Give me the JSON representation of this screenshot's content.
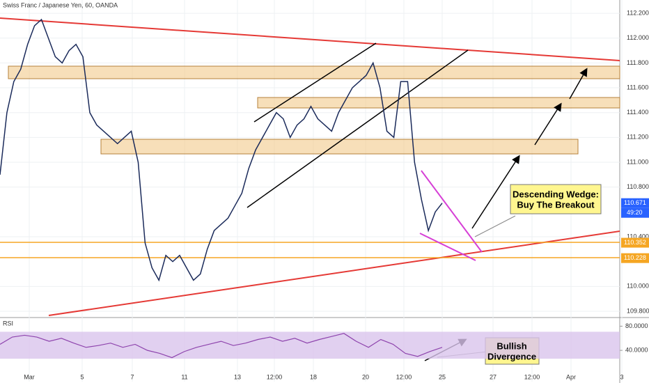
{
  "chart_data": {
    "type": "line",
    "title": "Swiss Franc / Japanese Yen, 60, OANDA",
    "color": "#1a2a5a",
    "values": [
      110.9,
      111.4,
      111.65,
      111.75,
      111.95,
      112.1,
      112.15,
      112.0,
      111.85,
      111.8,
      111.9,
      111.95,
      111.85,
      111.4,
      111.3,
      111.25,
      111.2,
      111.15,
      111.2,
      111.25,
      111.0,
      110.35,
      110.15,
      110.05,
      110.25,
      110.2,
      110.25,
      110.15,
      110.05,
      110.1,
      110.3,
      110.45,
      110.5,
      110.55,
      110.65,
      110.75,
      110.95,
      111.1,
      111.2,
      111.3,
      111.4,
      111.35,
      111.2,
      111.3,
      111.35,
      111.45,
      111.35,
      111.3,
      111.25,
      111.4,
      111.5,
      111.6,
      111.65,
      111.7,
      111.8,
      111.6,
      111.25,
      111.2,
      111.65,
      111.65,
      111.0,
      110.7,
      110.45,
      110.6,
      110.671
    ],
    "ylim": [
      109.755,
      112.307
    ],
    "yticks": [
      {
        "value": 112.2,
        "label": "112.200"
      },
      {
        "value": 112.0,
        "label": "112.000"
      },
      {
        "value": 111.8,
        "label": "111.800"
      },
      {
        "value": 111.6,
        "label": "111.600"
      },
      {
        "value": 111.4,
        "label": "111.400"
      },
      {
        "value": 111.2,
        "label": "111.200"
      },
      {
        "value": 111.0,
        "label": "111.000"
      },
      {
        "value": 110.8,
        "label": "110.800"
      },
      {
        "value": 110.4,
        "label": "110.400"
      },
      {
        "value": 110.0,
        "label": "110.000"
      },
      {
        "value": 109.8,
        "label": "109.800"
      }
    ],
    "price_labels": [
      {
        "value": 110.671,
        "label": "110.671",
        "color": "#2962ff"
      },
      {
        "value": 110.352,
        "label": "110.352",
        "color": "#f5a623"
      },
      {
        "value": 110.228,
        "label": "110.228",
        "color": "#f5a623"
      }
    ],
    "countdown": "49:20",
    "xticks": [
      "Mar",
      "5",
      "7",
      "11",
      "13",
      "12:00",
      "18",
      "20",
      "12:00",
      "25",
      "27",
      "12:00",
      "Apr",
      "3"
    ],
    "rsi": {
      "name": "RSI",
      "color": "#8e44ad",
      "values": [
        50,
        62,
        65,
        62,
        55,
        60,
        52,
        45,
        48,
        52,
        45,
        50,
        40,
        35,
        28,
        38,
        45,
        50,
        55,
        48,
        52,
        58,
        62,
        55,
        60,
        52,
        58,
        63,
        68,
        55,
        45,
        58,
        50,
        35,
        30,
        38,
        45
      ],
      "ylim": [
        -14,
        92
      ],
      "yticks": [
        {
          "value": 80,
          "label": "80.0000"
        },
        {
          "value": 40,
          "label": "40.0000"
        }
      ]
    },
    "annotations": [
      {
        "lines": [
          "Descending Wedge:",
          "Buy The Breakout"
        ]
      },
      {
        "lines": [
          "Bullish",
          "Divergence"
        ]
      }
    ]
  }
}
